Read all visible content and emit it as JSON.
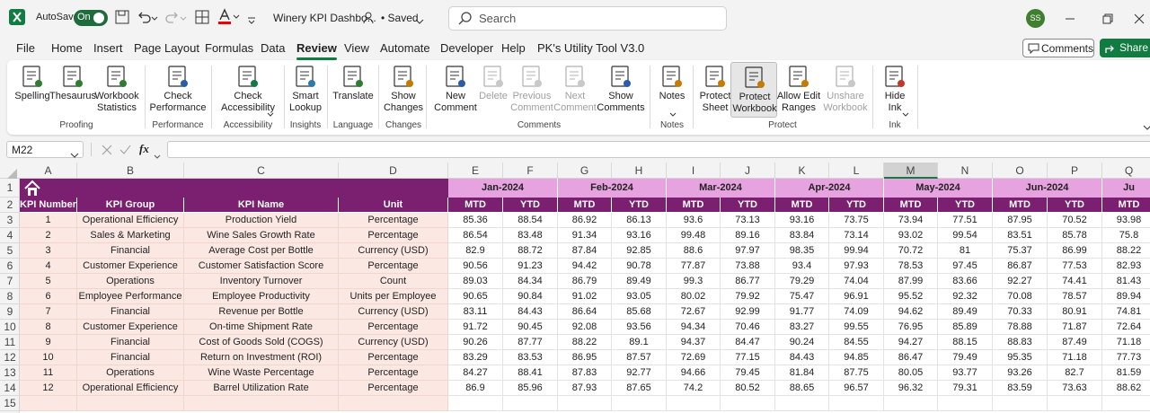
{
  "titlebar": {
    "autosave": "AutoSave",
    "toggle": "On",
    "filename": "Winery KPI Dashbo...",
    "status": "• Saved",
    "search": "Search",
    "avatar": "SS"
  },
  "tabs": [
    "File",
    "Home",
    "Insert",
    "Page Layout",
    "Formulas",
    "Data",
    "Review",
    "View",
    "Automate",
    "Developer",
    "Help",
    "PK's Utility Tool V3.0"
  ],
  "active_tab": 6,
  "buttons": {
    "comments": "Comments",
    "share": "Share"
  },
  "ribbon": {
    "groups": [
      {
        "label": "Proofing",
        "buttons": [
          {
            "label": [
              "Spelling"
            ]
          },
          {
            "label": [
              "Thesaurus"
            ]
          },
          {
            "label": [
              "Workbook",
              "Statistics"
            ]
          }
        ]
      },
      {
        "label": "Performance",
        "buttons": [
          {
            "label": [
              "Check",
              "Performance"
            ]
          }
        ]
      },
      {
        "label": "Accessibility",
        "buttons": [
          {
            "label": [
              "Check",
              "Accessibility"
            ],
            "dropdown": true
          }
        ]
      },
      {
        "label": "Insights",
        "buttons": [
          {
            "label": [
              "Smart",
              "Lookup"
            ]
          }
        ]
      },
      {
        "label": "Language",
        "buttons": [
          {
            "label": [
              "Translate"
            ]
          }
        ]
      },
      {
        "label": "Changes",
        "buttons": [
          {
            "label": [
              "Show",
              "Changes"
            ]
          }
        ]
      },
      {
        "label": "Comments",
        "buttons": [
          {
            "label": [
              "New",
              "Comment"
            ]
          },
          {
            "label": [
              "Delete"
            ],
            "disabled": true
          },
          {
            "label": [
              "Previous",
              "Comment"
            ],
            "disabled": true
          },
          {
            "label": [
              "Next",
              "Comment"
            ],
            "disabled": true
          },
          {
            "label": [
              "Show",
              "Comments"
            ]
          }
        ]
      },
      {
        "label": "Notes",
        "buttons": [
          {
            "label": [
              "Notes"
            ],
            "dropdown": true
          }
        ]
      },
      {
        "label": "Protect",
        "buttons": [
          {
            "label": [
              "Protect",
              "Sheet"
            ]
          },
          {
            "label": [
              "Protect",
              "Workbook"
            ],
            "selected": true
          },
          {
            "label": [
              "Allow Edit",
              "Ranges"
            ]
          },
          {
            "label": [
              "Unshare",
              "Workbook"
            ],
            "disabled": true
          }
        ]
      },
      {
        "label": "Ink",
        "buttons": [
          {
            "label": [
              "Hide",
              "Ink"
            ],
            "dropdown": true
          }
        ]
      }
    ]
  },
  "formula_bar": {
    "name_box": "M22",
    "fx_label": "fx"
  },
  "sheet": {
    "columns": [
      "A",
      "B",
      "C",
      "D",
      "E",
      "F",
      "G",
      "H",
      "I",
      "J",
      "K",
      "L",
      "M",
      "N",
      "O",
      "P",
      "Q"
    ],
    "selected_column": 12,
    "row_numbers": [
      1,
      2,
      3,
      4,
      5,
      6,
      7,
      8,
      9,
      10,
      11,
      12,
      13,
      14,
      15
    ],
    "months": [
      "Jan-2024",
      "Feb-2024",
      "Mar-2024",
      "Apr-2024",
      "May-2024",
      "Jun-2024",
      "Ju"
    ],
    "header": [
      "KPI Number",
      "KPI Group",
      "KPI Name",
      "Unit",
      "MTD",
      "YTD",
      "MTD",
      "YTD",
      "MTD",
      "YTD",
      "MTD",
      "YTD",
      "MTD",
      "YTD",
      "MTD",
      "YTD",
      "MTD"
    ],
    "rows": [
      [
        1,
        "Operational Efficiency",
        "Production Yield",
        "Percentage",
        85.36,
        88.54,
        86.92,
        86.13,
        93.6,
        73.13,
        93.16,
        73.75,
        73.94,
        77.51,
        87.95,
        70.52,
        93.98
      ],
      [
        2,
        "Sales & Marketing",
        "Wine Sales Growth Rate",
        "Percentage",
        86.54,
        83.48,
        91.34,
        93.16,
        99.48,
        89.16,
        83.84,
        73.14,
        93.02,
        99.54,
        83.51,
        85.78,
        75.8
      ],
      [
        3,
        "Financial",
        "Average Cost per Bottle",
        "Currency (USD)",
        82.9,
        88.72,
        87.84,
        92.85,
        88.6,
        97.97,
        98.35,
        99.94,
        70.72,
        81,
        75.37,
        86.99,
        88.22
      ],
      [
        4,
        "Customer Experience",
        "Customer Satisfaction Score",
        "Percentage",
        90.56,
        91.23,
        94.42,
        90.78,
        77.87,
        73.88,
        93.4,
        97.93,
        78.53,
        97.45,
        86.87,
        77.53,
        82.93
      ],
      [
        5,
        "Operations",
        "Inventory Turnover",
        "Count",
        89.03,
        84.34,
        86.79,
        89.49,
        99.3,
        86.77,
        79.29,
        74.04,
        87.99,
        83.66,
        92.27,
        74.41,
        81.43
      ],
      [
        6,
        "Employee Performance",
        "Employee Productivity",
        "Units per Employee",
        90.65,
        90.84,
        91.02,
        93.05,
        80.02,
        79.92,
        75.47,
        96.91,
        95.52,
        92.32,
        70.08,
        78.57,
        89.94
      ],
      [
        7,
        "Financial",
        "Revenue per Bottle",
        "Currency (USD)",
        83.11,
        84.43,
        86.64,
        85.68,
        72.67,
        92.99,
        91.77,
        74.09,
        94.62,
        89.49,
        70.33,
        80.91,
        74.81
      ],
      [
        8,
        "Customer Experience",
        "On-time Shipment Rate",
        "Percentage",
        91.72,
        90.45,
        92.08,
        93.56,
        94.34,
        70.46,
        83.27,
        99.55,
        76.95,
        85.89,
        78.88,
        71.87,
        72.64
      ],
      [
        9,
        "Financial",
        "Cost of Goods Sold (COGS)",
        "Currency (USD)",
        90.26,
        87.77,
        88.22,
        89.1,
        94.37,
        84.47,
        90.24,
        84.55,
        94.27,
        88.15,
        88.83,
        87.49,
        71.18
      ],
      [
        10,
        "Financial",
        "Return on Investment (ROI)",
        "Percentage",
        83.29,
        83.53,
        86.95,
        87.57,
        72.69,
        77.15,
        84.43,
        94.85,
        86.47,
        79.49,
        95.35,
        71.18,
        77.73
      ],
      [
        11,
        "Operations",
        "Wine Waste Percentage",
        "Percentage",
        84.27,
        88.41,
        87.83,
        92.77,
        94.66,
        79.45,
        81.84,
        87.75,
        80.05,
        93.77,
        93.26,
        82.7,
        81.59
      ],
      [
        12,
        "Operational Efficiency",
        "Barrel Utilization Rate",
        "Percentage",
        86.9,
        85.96,
        87.93,
        87.65,
        74.2,
        80.52,
        88.65,
        96.57,
        96.32,
        79.31,
        83.59,
        73.63,
        88.62
      ]
    ]
  }
}
